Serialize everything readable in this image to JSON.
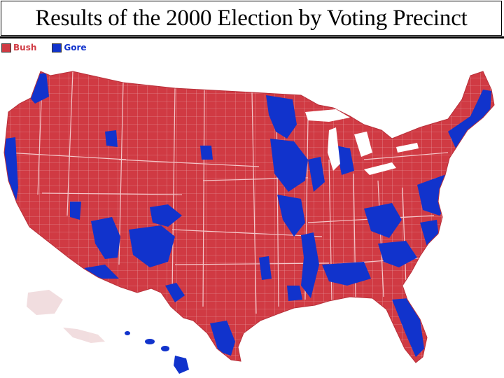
{
  "title": "Results of the 2000 Election by Voting Precinct",
  "legend": {
    "items": [
      {
        "label": "Bush",
        "color": "#d03a43"
      },
      {
        "label": "Gore",
        "color": "#1133cc"
      }
    ]
  },
  "map": {
    "region": "contiguous-us-with-alaska-hawaii-insets",
    "colors": {
      "bush": "#d03a43",
      "gore": "#1133cc",
      "borders": "#f0b8bc",
      "background": "#ffffff"
    }
  }
}
